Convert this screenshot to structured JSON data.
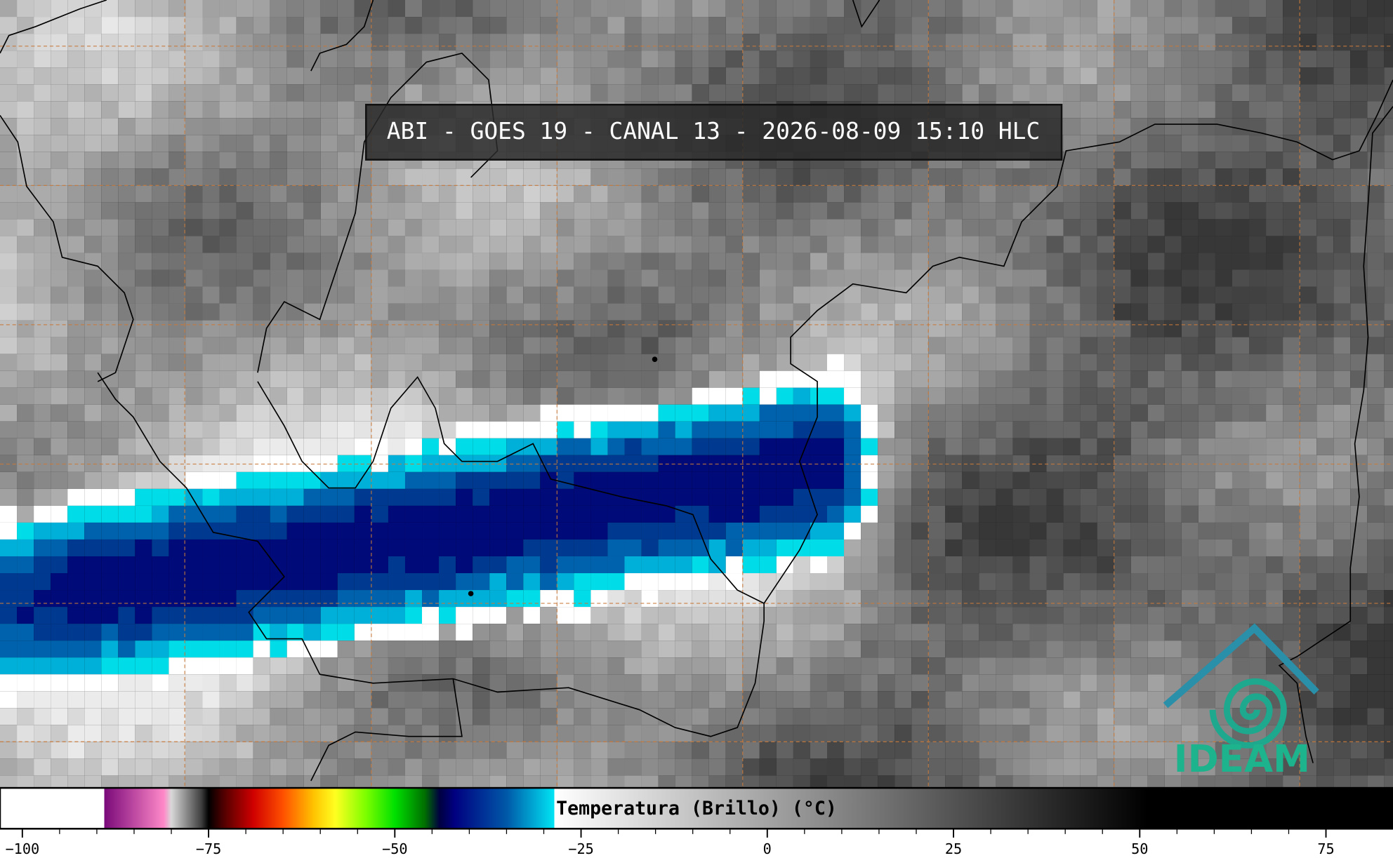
{
  "title": "ABI - GOES 19 - CANAL 13 - 2026-08-09 15:10 HLC",
  "logo": "IDEAM",
  "colorbar": {
    "label": "Temperatura (Brillo) (°C)",
    "range": [
      -103,
      84
    ],
    "ticks": [
      {
        "value": -100,
        "label": "−100"
      },
      {
        "value": -75,
        "label": "−75"
      },
      {
        "value": -50,
        "label": "−50"
      },
      {
        "value": -25,
        "label": "−25"
      },
      0,
      25,
      50,
      75
    ],
    "stops": [
      {
        "value": -103,
        "color": "#ffffff"
      },
      {
        "value": -89,
        "color": "#ffffff"
      },
      {
        "value": -89,
        "color": "#7a0a7a"
      },
      {
        "value": -81,
        "color": "#ff88c8"
      },
      {
        "value": -80,
        "color": "#d8d8d8"
      },
      {
        "value": -76,
        "color": "#404040"
      },
      {
        "value": -75,
        "color": "#000000"
      },
      {
        "value": -73,
        "color": "#500000"
      },
      {
        "value": -69,
        "color": "#d00000"
      },
      {
        "value": -65,
        "color": "#ff5000"
      },
      {
        "value": -61,
        "color": "#ffc000"
      },
      {
        "value": -58,
        "color": "#ffff20"
      },
      {
        "value": -54,
        "color": "#80ff00"
      },
      {
        "value": -50,
        "color": "#00e000"
      },
      {
        "value": -46,
        "color": "#007000"
      },
      {
        "value": -44,
        "color": "#000040"
      },
      {
        "value": -42,
        "color": "#000080"
      },
      {
        "value": -35,
        "color": "#0058a8"
      },
      {
        "value": -28.6,
        "color": "#00e4f4"
      },
      {
        "value": -28.6,
        "color": "#ffffff"
      },
      {
        "value": 51,
        "color": "#000000"
      },
      {
        "value": 84,
        "color": "#000000"
      }
    ]
  }
}
